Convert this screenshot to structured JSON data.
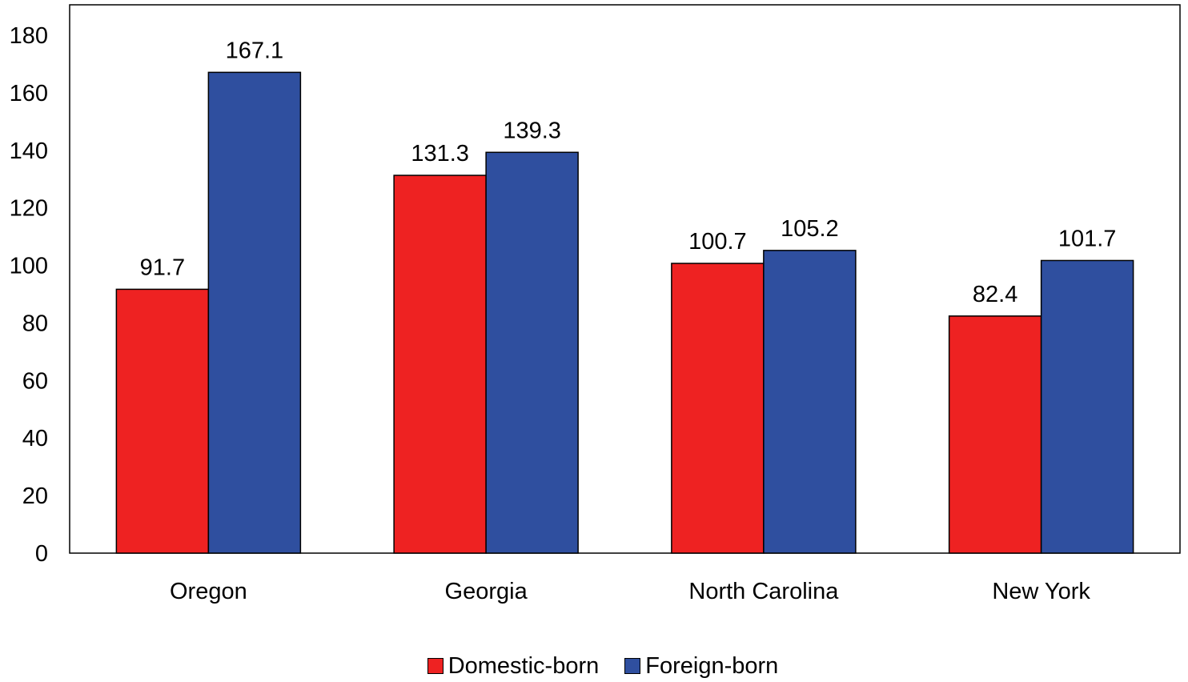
{
  "chart_data": {
    "type": "bar",
    "categories": [
      "Oregon",
      "Georgia",
      "North Carolina",
      "New York"
    ],
    "series": [
      {
        "name": "Domestic-born",
        "color": "#ee2222",
        "values": [
          91.7,
          131.3,
          100.7,
          82.4
        ],
        "labels": [
          "91.7",
          "131.3",
          "100.7",
          "82.4"
        ]
      },
      {
        "name": "Foreign-born",
        "color": "#2f4f9f",
        "values": [
          167.1,
          139.3,
          105.2,
          101.7
        ],
        "labels": [
          "167.1",
          "139.3",
          "105.2",
          "101.7"
        ]
      }
    ],
    "yticks": [
      "0",
      "20",
      "40",
      "60",
      "80",
      "100",
      "120",
      "140",
      "160",
      "180"
    ],
    "ylim": [
      0,
      180
    ],
    "grid": false,
    "legend": "bottom-center"
  }
}
